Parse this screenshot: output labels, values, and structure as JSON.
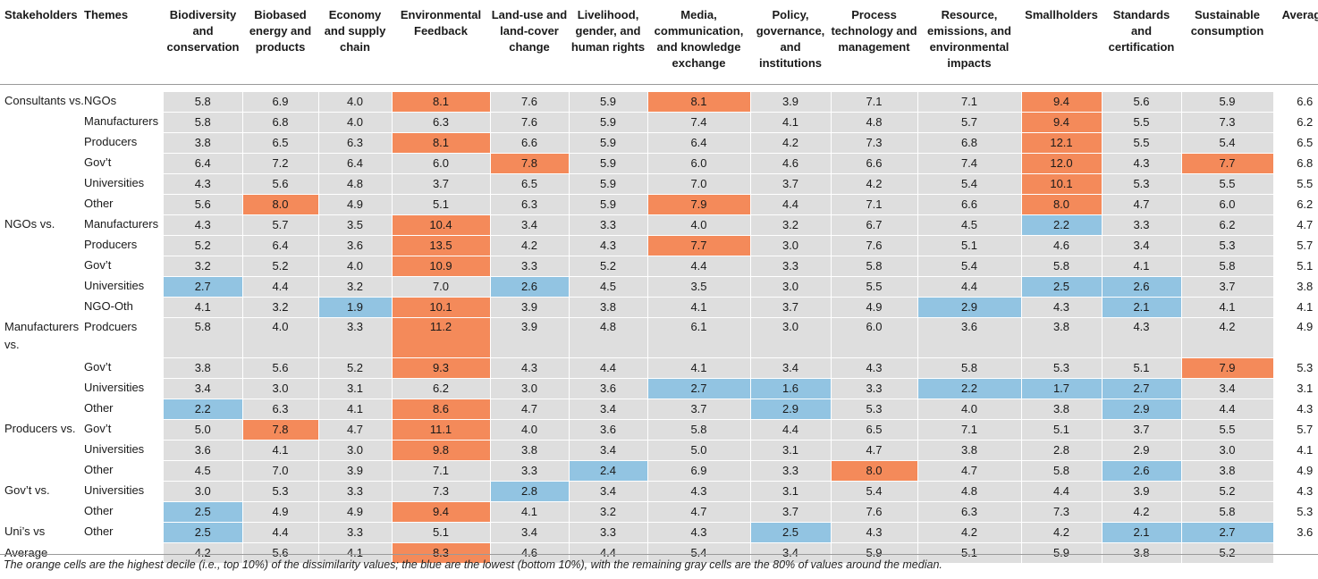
{
  "header": {
    "stakeholders": "Stakeholders",
    "themes": "Themes",
    "columns": [
      "Biodiversity and conservation",
      "Biobased energy and products",
      "Economy and supply chain",
      "Environmental Feedback",
      "Land-use and land-cover change",
      "Livelihood, gender, and human rights",
      "Media, communication, and knowledge exchange",
      "Policy, governance, and institutions",
      "Process technology and management",
      "Resource, emissions, and environmental impacts",
      "Smallholders",
      "Standards and certification",
      "Sustainable consumption",
      "Average"
    ]
  },
  "colors": {
    "high": "#f48a5a",
    "low": "#92c4e2",
    "neutral": "#dedede"
  },
  "rows": [
    {
      "group": "Consultants vs.",
      "vs": "NGOs",
      "values": [
        "5.8",
        "6.9",
        "4.0",
        "8.1",
        "7.6",
        "5.9",
        "8.1",
        "3.9",
        "7.1",
        "7.1",
        "9.4",
        "5.6",
        "5.9",
        "6.6"
      ],
      "flags": [
        "",
        "",
        "",
        "h",
        "",
        "",
        "h",
        "",
        "",
        "",
        "h",
        "",
        "",
        ""
      ]
    },
    {
      "group": "",
      "vs": "Manufacturers",
      "values": [
        "5.8",
        "6.8",
        "4.0",
        "6.3",
        "7.6",
        "5.9",
        "7.4",
        "4.1",
        "4.8",
        "5.7",
        "9.4",
        "5.5",
        "7.3",
        "6.2"
      ],
      "flags": [
        "",
        "",
        "",
        "",
        "",
        "",
        "",
        "",
        "",
        "",
        "h",
        "",
        "",
        ""
      ]
    },
    {
      "group": "",
      "vs": "Producers",
      "values": [
        "3.8",
        "6.5",
        "6.3",
        "8.1",
        "6.6",
        "5.9",
        "6.4",
        "4.2",
        "7.3",
        "6.8",
        "12.1",
        "5.5",
        "5.4",
        "6.5"
      ],
      "flags": [
        "",
        "",
        "",
        "h",
        "",
        "",
        "",
        "",
        "",
        "",
        "h",
        "",
        "",
        ""
      ]
    },
    {
      "group": "",
      "vs": "Gov’t",
      "values": [
        "6.4",
        "7.2",
        "6.4",
        "6.0",
        "7.8",
        "5.9",
        "6.0",
        "4.6",
        "6.6",
        "7.4",
        "12.0",
        "4.3",
        "7.7",
        "6.8"
      ],
      "flags": [
        "",
        "",
        "",
        "",
        "h",
        "",
        "",
        "",
        "",
        "",
        "h",
        "",
        "h",
        ""
      ]
    },
    {
      "group": "",
      "vs": "Universities",
      "values": [
        "4.3",
        "5.6",
        "4.8",
        "3.7",
        "6.5",
        "5.9",
        "7.0",
        "3.7",
        "4.2",
        "5.4",
        "10.1",
        "5.3",
        "5.5",
        "5.5"
      ],
      "flags": [
        "",
        "",
        "",
        "",
        "",
        "",
        "",
        "",
        "",
        "",
        "h",
        "",
        "",
        ""
      ]
    },
    {
      "group": "",
      "vs": "Other",
      "values": [
        "5.6",
        "8.0",
        "4.9",
        "5.1",
        "6.3",
        "5.9",
        "7.9",
        "4.4",
        "7.1",
        "6.6",
        "8.0",
        "4.7",
        "6.0",
        "6.2"
      ],
      "flags": [
        "",
        "h",
        "",
        "",
        "",
        "",
        "h",
        "",
        "",
        "",
        "h",
        "",
        "",
        ""
      ]
    },
    {
      "group": "NGOs vs.",
      "vs": "Manufacturers",
      "values": [
        "4.3",
        "5.7",
        "3.5",
        "10.4",
        "3.4",
        "3.3",
        "4.0",
        "3.2",
        "6.7",
        "4.5",
        "2.2",
        "3.3",
        "6.2",
        "4.7"
      ],
      "flags": [
        "",
        "",
        "",
        "h",
        "",
        "",
        "",
        "",
        "",
        "",
        "l",
        "",
        "",
        ""
      ]
    },
    {
      "group": "",
      "vs": "Producers",
      "values": [
        "5.2",
        "6.4",
        "3.6",
        "13.5",
        "4.2",
        "4.3",
        "7.7",
        "3.0",
        "7.6",
        "5.1",
        "4.6",
        "3.4",
        "5.3",
        "5.7"
      ],
      "flags": [
        "",
        "",
        "",
        "h",
        "",
        "",
        "h",
        "",
        "",
        "",
        "",
        "",
        "",
        ""
      ]
    },
    {
      "group": "",
      "vs": "Gov’t",
      "values": [
        "3.2",
        "5.2",
        "4.0",
        "10.9",
        "3.3",
        "5.2",
        "4.4",
        "3.3",
        "5.8",
        "5.4",
        "5.8",
        "4.1",
        "5.8",
        "5.1"
      ],
      "flags": [
        "",
        "",
        "",
        "h",
        "",
        "",
        "",
        "",
        "",
        "",
        "",
        "",
        "",
        ""
      ]
    },
    {
      "group": "",
      "vs": "Universities",
      "values": [
        "2.7",
        "4.4",
        "3.2",
        "7.0",
        "2.6",
        "4.5",
        "3.5",
        "3.0",
        "5.5",
        "4.4",
        "2.5",
        "2.6",
        "3.7",
        "3.8"
      ],
      "flags": [
        "l",
        "",
        "",
        "",
        "l",
        "",
        "",
        "",
        "",
        "",
        "l",
        "l",
        "",
        ""
      ]
    },
    {
      "group": "",
      "vs": "NGO-Oth",
      "values": [
        "4.1",
        "3.2",
        "1.9",
        "10.1",
        "3.9",
        "3.8",
        "4.1",
        "3.7",
        "4.9",
        "2.9",
        "4.3",
        "2.1",
        "4.1",
        "4.1"
      ],
      "flags": [
        "",
        "",
        "l",
        "h",
        "",
        "",
        "",
        "",
        "",
        "l",
        "",
        "l",
        "",
        ""
      ]
    },
    {
      "group": "Manufacturers vs.",
      "vs": "Prodcuers",
      "tall": true,
      "values": [
        "5.8",
        "4.0",
        "3.3",
        "11.2",
        "3.9",
        "4.8",
        "6.1",
        "3.0",
        "6.0",
        "3.6",
        "3.8",
        "4.3",
        "4.2",
        "4.9"
      ],
      "flags": [
        "",
        "",
        "",
        "h",
        "",
        "",
        "",
        "",
        "",
        "",
        "",
        "",
        "",
        ""
      ]
    },
    {
      "group": "",
      "vs": "Gov’t",
      "values": [
        "3.8",
        "5.6",
        "5.2",
        "9.3",
        "4.3",
        "4.4",
        "4.1",
        "3.4",
        "4.3",
        "5.8",
        "5.3",
        "5.1",
        "7.9",
        "5.3"
      ],
      "flags": [
        "",
        "",
        "",
        "h",
        "",
        "",
        "",
        "",
        "",
        "",
        "",
        "",
        "h",
        ""
      ]
    },
    {
      "group": "",
      "vs": "Universities",
      "values": [
        "3.4",
        "3.0",
        "3.1",
        "6.2",
        "3.0",
        "3.6",
        "2.7",
        "1.6",
        "3.3",
        "2.2",
        "1.7",
        "2.7",
        "3.4",
        "3.1"
      ],
      "flags": [
        "",
        "",
        "",
        "",
        "",
        "",
        "l",
        "l",
        "",
        "l",
        "l",
        "l",
        "",
        ""
      ]
    },
    {
      "group": "",
      "vs": "Other",
      "values": [
        "2.2",
        "6.3",
        "4.1",
        "8.6",
        "4.7",
        "3.4",
        "3.7",
        "2.9",
        "5.3",
        "4.0",
        "3.8",
        "2.9",
        "4.4",
        "4.3"
      ],
      "flags": [
        "l",
        "",
        "",
        "h",
        "",
        "",
        "",
        "l",
        "",
        "",
        "",
        "l",
        "",
        ""
      ]
    },
    {
      "group": "Producers vs.",
      "vs": "Gov’t",
      "values": [
        "5.0",
        "7.8",
        "4.7",
        "11.1",
        "4.0",
        "3.6",
        "5.8",
        "4.4",
        "6.5",
        "7.1",
        "5.1",
        "3.7",
        "5.5",
        "5.7"
      ],
      "flags": [
        "",
        "h",
        "",
        "h",
        "",
        "",
        "",
        "",
        "",
        "",
        "",
        "",
        "",
        ""
      ]
    },
    {
      "group": "",
      "vs": "Universities",
      "values": [
        "3.6",
        "4.1",
        "3.0",
        "9.8",
        "3.8",
        "3.4",
        "5.0",
        "3.1",
        "4.7",
        "3.8",
        "2.8",
        "2.9",
        "3.0",
        "4.1"
      ],
      "flags": [
        "",
        "",
        "",
        "h",
        "",
        "",
        "",
        "",
        "",
        "",
        "",
        "",
        "",
        ""
      ]
    },
    {
      "group": "",
      "vs": "Other",
      "values": [
        "4.5",
        "7.0",
        "3.9",
        "7.1",
        "3.3",
        "2.4",
        "6.9",
        "3.3",
        "8.0",
        "4.7",
        "5.8",
        "2.6",
        "3.8",
        "4.9"
      ],
      "flags": [
        "",
        "",
        "",
        "",
        "",
        "l",
        "",
        "",
        "h",
        "",
        "",
        "l",
        "",
        ""
      ]
    },
    {
      "group": "Gov’t vs.",
      "vs": "Universities",
      "values": [
        "3.0",
        "5.3",
        "3.3",
        "7.3",
        "2.8",
        "3.4",
        "4.3",
        "3.1",
        "5.4",
        "4.8",
        "4.4",
        "3.9",
        "5.2",
        "4.3"
      ],
      "flags": [
        "",
        "",
        "",
        "",
        "l",
        "",
        "",
        "",
        "",
        "",
        "",
        "",
        "",
        ""
      ]
    },
    {
      "group": "",
      "vs": "Other",
      "values": [
        "2.5",
        "4.9",
        "4.9",
        "9.4",
        "4.1",
        "3.2",
        "4.7",
        "3.7",
        "7.6",
        "6.3",
        "7.3",
        "4.2",
        "5.8",
        "5.3"
      ],
      "flags": [
        "l",
        "",
        "",
        "h",
        "",
        "",
        "",
        "",
        "",
        "",
        "",
        "",
        "",
        ""
      ]
    },
    {
      "group": "Uni’s vs",
      "vs": "Other",
      "values": [
        "2.5",
        "4.4",
        "3.3",
        "5.1",
        "3.4",
        "3.3",
        "4.3",
        "2.5",
        "4.3",
        "4.2",
        "4.2",
        "2.1",
        "2.7",
        "3.6"
      ],
      "flags": [
        "l",
        "",
        "",
        "",
        "",
        "",
        "",
        "l",
        "",
        "",
        "",
        "l",
        "l",
        ""
      ]
    }
  ],
  "average_row": {
    "label": "Average",
    "values": [
      "4.2",
      "5.6",
      "4.1",
      "8.3",
      "4.6",
      "4.4",
      "5.4",
      "3.4",
      "5.9",
      "5.1",
      "5.9",
      "3.8",
      "5.2",
      ""
    ],
    "flags": [
      "",
      "",
      "",
      "h",
      "",
      "",
      "",
      "",
      "",
      "",
      "",
      "",
      "",
      ""
    ]
  },
  "footnote": "The orange cells are the highest decile (i.e., top 10%) of the dissimilarity values; the blue are the lowest (bottom 10%), with the remaining gray cells are the 80% of values around the median."
}
